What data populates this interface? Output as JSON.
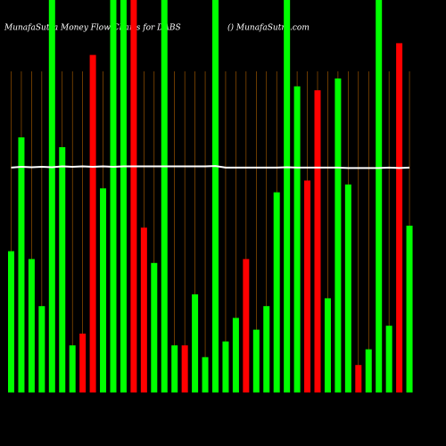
{
  "chart_data": {
    "type": "bar",
    "title": "MunafaSutra  Money Flow  Charts for DABS",
    "subtitle": "() MunafaSutra.com",
    "categories": [
      null,
      null,
      null,
      null,
      null,
      null,
      null,
      null,
      null,
      null,
      null,
      null,
      null,
      null,
      null,
      null,
      null,
      null,
      null,
      null,
      null,
      null,
      null,
      null,
      null,
      null,
      null,
      null,
      null,
      null,
      null,
      null,
      null,
      null,
      null,
      null,
      null,
      null,
      null,
      null
    ],
    "values": [
      36,
      65,
      34,
      22,
      100,
      62.5,
      12,
      15,
      86,
      52,
      100,
      100,
      100,
      42,
      33,
      100,
      12,
      12,
      25,
      9,
      100,
      13,
      19,
      34,
      16,
      22,
      51,
      100,
      78,
      54,
      77,
      24,
      80,
      53,
      7,
      11,
      100,
      17,
      89,
      42.5
    ],
    "colors": [
      "#00ff00",
      "#00ff00",
      "#00ff00",
      "#00ff00",
      "#00ff00",
      "#00ff00",
      "#00ff00",
      "#ff0000",
      "#ff0000",
      "#00ff00",
      "#00ff00",
      "#00ff00",
      "#ff0000",
      "#ff0000",
      "#00ff00",
      "#00ff00",
      "#00ff00",
      "#ff0000",
      "#00ff00",
      "#00ff00",
      "#00ff00",
      "#00ff00",
      "#00ff00",
      "#ff0000",
      "#00ff00",
      "#00ff00",
      "#00ff00",
      "#00ff00",
      "#00ff00",
      "#ff0000",
      "#ff0000",
      "#00ff00",
      "#00ff00",
      "#00ff00",
      "#ff0000",
      "#00ff00",
      "#00ff00",
      "#00ff00",
      "#ff0000",
      "#00ff00"
    ],
    "line": {
      "color": "#ffffff",
      "values": [
        57.3,
        57.5,
        57.4,
        57.5,
        57.4,
        57.6,
        57.5,
        57.6,
        57.5,
        57.6,
        57.5,
        57.6,
        57.6,
        57.6,
        57.6,
        57.6,
        57.6,
        57.6,
        57.6,
        57.6,
        57.7,
        57.3,
        57.3,
        57.3,
        57.3,
        57.3,
        57.3,
        57.4,
        57.3,
        57.3,
        57.3,
        57.3,
        57.3,
        57.2,
        57.2,
        57.2,
        57.2,
        57.3,
        57.2,
        57.3
      ]
    },
    "ylim": [
      0,
      100
    ],
    "grid": true,
    "grid_color": "#b06000"
  }
}
